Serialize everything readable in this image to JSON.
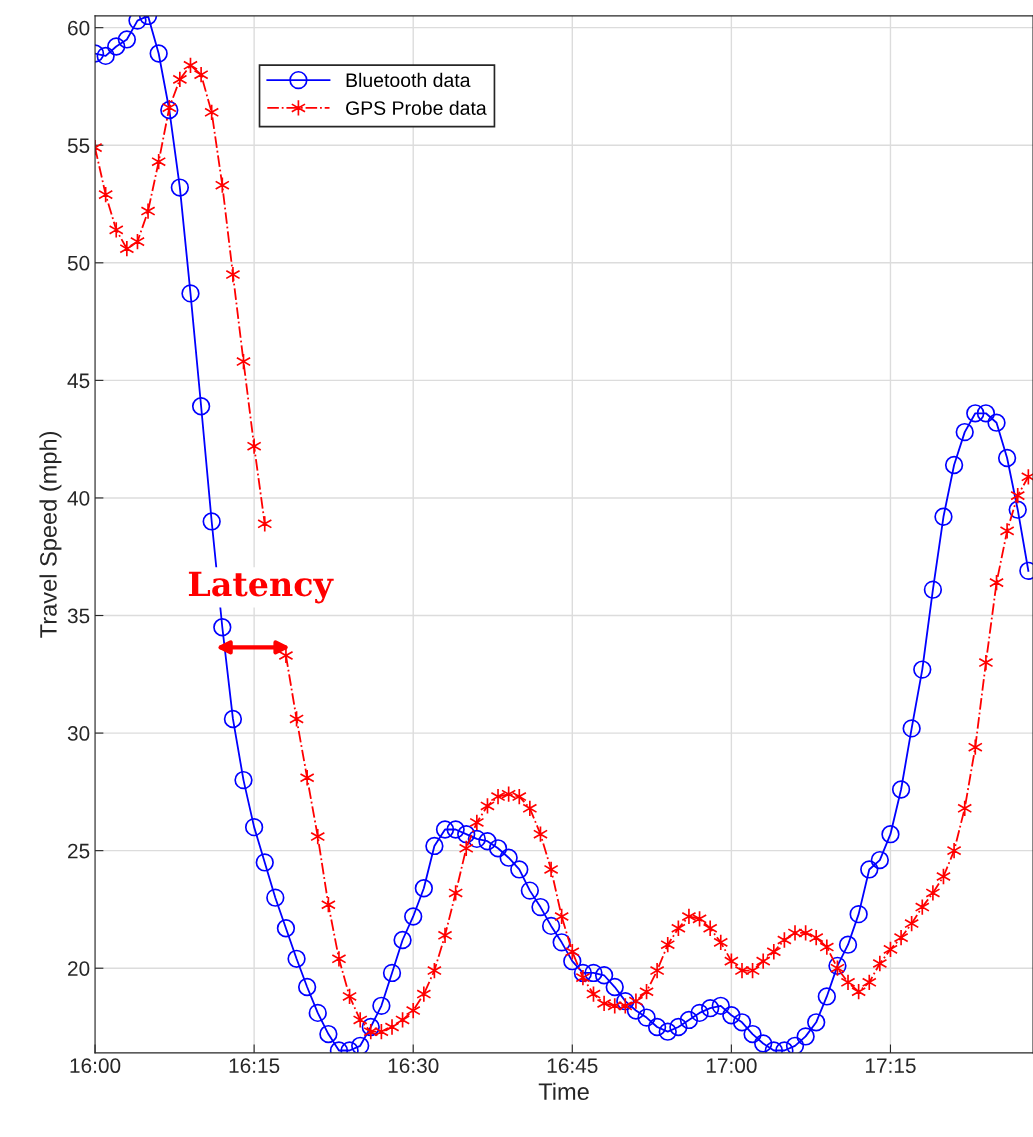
{
  "chart_data": {
    "type": "line",
    "xlabel": "Time",
    "ylabel": "Travel Speed (mph)",
    "x": [
      16,
      16.0167,
      16.0333,
      16.05,
      16.0667,
      16.0833,
      16.1,
      16.1167,
      16.1333,
      16.15,
      16.1667,
      16.1833,
      16.2,
      16.2167,
      16.2333,
      16.25,
      16.2667,
      16.2833,
      16.3,
      16.3167,
      16.3333,
      16.35,
      16.3667,
      16.3833,
      16.4,
      16.4167,
      16.4333,
      16.45,
      16.4667,
      16.4833,
      16.5,
      16.5167,
      16.5333,
      16.55,
      16.5667,
      16.5833,
      16.6,
      16.6167,
      16.6333,
      16.65,
      16.6667,
      16.6833,
      16.7,
      16.7167,
      16.7333,
      16.75,
      16.7667,
      16.7833,
      16.8,
      16.8167,
      16.8333,
      16.85,
      16.8667,
      16.8833,
      16.9,
      16.9167,
      16.9333,
      16.95,
      16.9667,
      16.9833,
      17,
      17.0167,
      17.0333,
      17.05,
      17.0667,
      17.0833,
      17.1,
      17.1167,
      17.1333,
      17.15,
      17.1667,
      17.1833,
      17.2,
      17.2167,
      17.2333,
      17.25,
      17.2667,
      17.2833,
      17.3,
      17.3167,
      17.3333,
      17.35,
      17.3667,
      17.3833,
      17.4,
      17.4167,
      17.4333,
      17.45,
      17.4667
    ],
    "series": [
      {
        "name": "Bluetooth data",
        "color": "#0000ff",
        "marker": "circle",
        "line_style": "solid",
        "values": [
          58.9,
          58.8,
          59.2,
          59.5,
          60.3,
          60.5,
          58.9,
          56.5,
          53.2,
          48.7,
          43.9,
          39.0,
          34.5,
          30.6,
          28.0,
          26.0,
          24.5,
          23.0,
          21.7,
          20.4,
          19.2,
          18.1,
          17.2,
          16.5,
          16.5,
          16.7,
          17.5,
          18.4,
          19.8,
          21.2,
          22.2,
          23.4,
          25.2,
          25.9,
          25.9,
          25.7,
          25.5,
          25.4,
          25.1,
          24.7,
          24.2,
          23.3,
          22.6,
          21.8,
          21.1,
          20.3,
          19.8,
          19.8,
          19.7,
          19.2,
          18.6,
          18.2,
          17.9,
          17.5,
          17.3,
          17.5,
          17.8,
          18.1,
          18.3,
          18.4,
          18.0,
          17.7,
          17.2,
          16.8,
          16.5,
          16.5,
          16.7,
          17.1,
          17.7,
          18.8,
          20.1,
          21.0,
          22.3,
          24.2,
          24.6,
          25.7,
          27.6,
          30.2,
          32.7,
          36.1,
          39.2,
          41.4,
          42.8,
          43.6,
          43.6,
          43.2,
          41.7,
          39.5,
          36.9
        ]
      },
      {
        "name": "GPS Probe data",
        "color": "#ff0000",
        "marker": "cross",
        "line_style": "dashdot",
        "values": [
          54.9,
          52.9,
          51.4,
          50.6,
          50.9,
          52.2,
          54.3,
          56.6,
          57.8,
          58.4,
          58.0,
          56.4,
          53.3,
          49.5,
          45.8,
          42.2,
          38.9,
          null,
          33.3,
          30.6,
          28.1,
          25.6,
          22.7,
          20.4,
          18.8,
          17.8,
          17.3,
          17.3,
          17.5,
          17.8,
          18.2,
          18.9,
          19.9,
          21.4,
          23.2,
          25.1,
          26.2,
          26.9,
          27.3,
          27.4,
          27.3,
          26.8,
          25.7,
          24.2,
          22.2,
          20.7,
          19.6,
          18.9,
          18.5,
          18.4,
          18.4,
          18.6,
          19.0,
          19.9,
          21.0,
          21.7,
          22.2,
          22.1,
          21.7,
          21.1,
          20.3,
          19.9,
          19.9,
          20.3,
          20.7,
          21.2,
          21.5,
          21.5,
          21.3,
          20.9,
          20.0,
          19.4,
          19.0,
          19.4,
          20.2,
          20.8,
          21.3,
          21.9,
          22.6,
          23.2,
          23.9,
          25.0,
          26.8,
          29.4,
          33.0,
          36.4,
          38.6,
          40.1,
          40.9
        ]
      }
    ],
    "xlim": [
      16,
      17.474
    ],
    "xticks": [
      {
        "value": 16,
        "label": "16:00"
      },
      {
        "value": 16.25,
        "label": "16:15"
      },
      {
        "value": 16.5,
        "label": "16:30"
      },
      {
        "value": 16.75,
        "label": "16:45"
      },
      {
        "value": 17,
        "label": "17:00"
      },
      {
        "value": 17.25,
        "label": "17:15"
      }
    ],
    "ylim": [
      16.4,
      60.5
    ],
    "yticks": [
      20,
      25,
      30,
      35,
      40,
      45,
      50,
      55,
      60
    ],
    "grid": true,
    "legend": "top left",
    "annotations": [
      "Latency"
    ]
  }
}
